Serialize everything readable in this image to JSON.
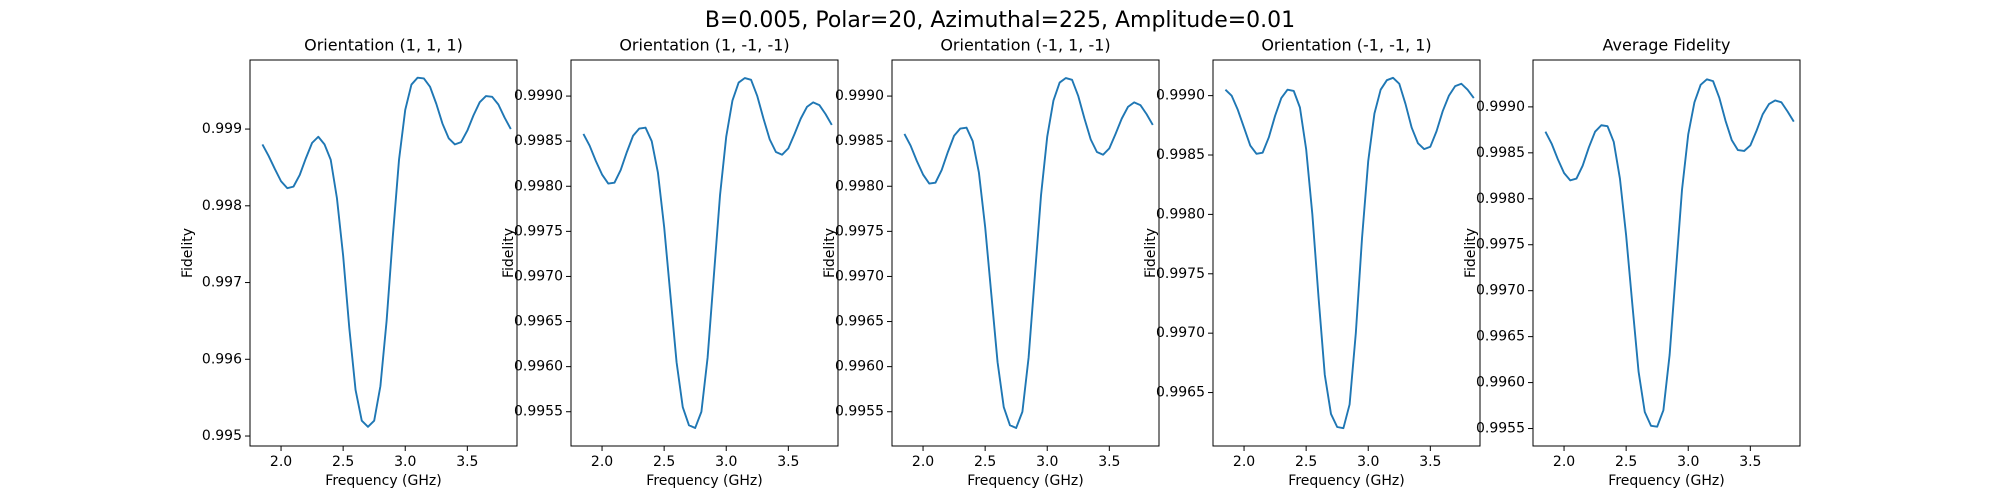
{
  "title": "B=0.005, Polar=20, Azimuthal=225, Amplitude=0.01",
  "chart_data": [
    {
      "type": "line",
      "title": "Orientation (1, 1, 1)",
      "xlabel": "Frequency (GHz)",
      "ylabel": "Fidelity",
      "color": "#1f77b4",
      "x": [
        1.85,
        1.9,
        1.95,
        2.0,
        2.05,
        2.1,
        2.15,
        2.2,
        2.25,
        2.3,
        2.35,
        2.4,
        2.45,
        2.5,
        2.55,
        2.6,
        2.65,
        2.7,
        2.75,
        2.8,
        2.85,
        2.9,
        2.95,
        3.0,
        3.05,
        3.1,
        3.15,
        3.2,
        3.25,
        3.3,
        3.35,
        3.4,
        3.45,
        3.5,
        3.55,
        3.6,
        3.65,
        3.7,
        3.75,
        3.8,
        3.85
      ],
      "values": [
        0.9988,
        0.99865,
        0.99848,
        0.99832,
        0.99823,
        0.99825,
        0.9984,
        0.99862,
        0.99882,
        0.9989,
        0.9988,
        0.9986,
        0.9981,
        0.99735,
        0.9964,
        0.9956,
        0.9952,
        0.99512,
        0.9952,
        0.99565,
        0.9965,
        0.9976,
        0.9986,
        0.99925,
        0.99958,
        0.99967,
        0.99966,
        0.99955,
        0.99933,
        0.99907,
        0.99888,
        0.9988,
        0.99883,
        0.99898,
        0.99918,
        0.99935,
        0.99943,
        0.99942,
        0.99932,
        0.99915,
        0.999
      ],
      "xlim": [
        1.75,
        3.9
      ],
      "ylim": [
        0.99487,
        0.9999
      ],
      "xticks": [
        {
          "value": 2,
          "label": "2.0"
        },
        2.5,
        {
          "value": 3,
          "label": "3.0"
        },
        3.5
      ],
      "yticks": [
        {
          "value": 0.995,
          "label": "0.995"
        },
        0.996,
        0.997,
        0.998,
        0.999
      ]
    },
    {
      "type": "line",
      "title": "Orientation (1, -1, -1)",
      "xlabel": "Frequency (GHz)",
      "ylabel": "Fidelity",
      "color": "#1f77b4",
      "x": [
        1.85,
        1.9,
        1.95,
        2.0,
        2.05,
        2.1,
        2.15,
        2.2,
        2.25,
        2.3,
        2.35,
        2.4,
        2.45,
        2.5,
        2.55,
        2.6,
        2.65,
        2.7,
        2.75,
        2.8,
        2.85,
        2.9,
        2.95,
        3.0,
        3.05,
        3.1,
        3.15,
        3.2,
        3.25,
        3.3,
        3.35,
        3.4,
        3.45,
        3.5,
        3.55,
        3.6,
        3.65,
        3.7,
        3.75,
        3.8,
        3.85
      ],
      "values": [
        0.99858,
        0.99845,
        0.99828,
        0.99813,
        0.99803,
        0.99804,
        0.99818,
        0.99838,
        0.99856,
        0.99864,
        0.99865,
        0.9985,
        0.99815,
        0.99755,
        0.9968,
        0.99605,
        0.99555,
        0.99535,
        0.99532,
        0.9955,
        0.9961,
        0.997,
        0.9979,
        0.99855,
        0.99895,
        0.99915,
        0.9992,
        0.99918,
        0.999,
        0.99875,
        0.99852,
        0.99838,
        0.99835,
        0.99842,
        0.99858,
        0.99875,
        0.99888,
        0.99893,
        0.9989,
        0.9988,
        0.99868
      ],
      "xlim": [
        1.75,
        3.9
      ],
      "ylim": [
        0.99512,
        0.9994
      ],
      "xticks": [
        {
          "value": 2,
          "label": "2.0"
        },
        2.5,
        {
          "value": 3,
          "label": "3.0"
        },
        3.5
      ],
      "yticks": [
        0.9955,
        {
          "value": 0.996,
          "label": "0.9960"
        },
        0.9965,
        {
          "value": 0.997,
          "label": "0.9970"
        },
        0.9975,
        {
          "value": 0.998,
          "label": "0.9980"
        },
        0.9985,
        {
          "value": 0.999,
          "label": "0.9990"
        }
      ]
    },
    {
      "type": "line",
      "title": "Orientation (-1, 1, -1)",
      "xlabel": "Frequency (GHz)",
      "ylabel": "Fidelity",
      "color": "#1f77b4",
      "x": [
        1.85,
        1.9,
        1.95,
        2.0,
        2.05,
        2.1,
        2.15,
        2.2,
        2.25,
        2.3,
        2.35,
        2.4,
        2.45,
        2.5,
        2.55,
        2.6,
        2.65,
        2.7,
        2.75,
        2.8,
        2.85,
        2.9,
        2.95,
        3.0,
        3.05,
        3.1,
        3.15,
        3.2,
        3.25,
        3.3,
        3.35,
        3.4,
        3.45,
        3.5,
        3.55,
        3.6,
        3.65,
        3.7,
        3.75,
        3.8,
        3.85
      ],
      "values": [
        0.99858,
        0.99845,
        0.99828,
        0.99813,
        0.99803,
        0.99804,
        0.99818,
        0.99838,
        0.99856,
        0.99864,
        0.99865,
        0.9985,
        0.99815,
        0.99755,
        0.9968,
        0.99605,
        0.99555,
        0.99535,
        0.99532,
        0.9955,
        0.9961,
        0.997,
        0.9979,
        0.99855,
        0.99895,
        0.99915,
        0.9992,
        0.99918,
        0.999,
        0.99875,
        0.99852,
        0.99838,
        0.99835,
        0.99842,
        0.99858,
        0.99875,
        0.99888,
        0.99893,
        0.9989,
        0.9988,
        0.99868
      ],
      "xlim": [
        1.75,
        3.9
      ],
      "ylim": [
        0.99512,
        0.9994
      ],
      "xticks": [
        {
          "value": 2,
          "label": "2.0"
        },
        2.5,
        {
          "value": 3,
          "label": "3.0"
        },
        3.5
      ],
      "yticks": [
        0.9955,
        {
          "value": 0.996,
          "label": "0.9960"
        },
        0.9965,
        {
          "value": 0.997,
          "label": "0.9970"
        },
        0.9975,
        {
          "value": 0.998,
          "label": "0.9980"
        },
        0.9985,
        {
          "value": 0.999,
          "label": "0.9990"
        }
      ]
    },
    {
      "type": "line",
      "title": "Orientation (-1, -1, 1)",
      "xlabel": "Frequency (GHz)",
      "ylabel": "Fidelity",
      "color": "#1f77b4",
      "x": [
        1.85,
        1.9,
        1.95,
        2.0,
        2.05,
        2.1,
        2.15,
        2.2,
        2.25,
        2.3,
        2.35,
        2.4,
        2.45,
        2.5,
        2.55,
        2.6,
        2.65,
        2.7,
        2.75,
        2.8,
        2.85,
        2.9,
        2.95,
        3.0,
        3.05,
        3.1,
        3.15,
        3.2,
        3.25,
        3.3,
        3.35,
        3.4,
        3.45,
        3.5,
        3.55,
        3.6,
        3.65,
        3.7,
        3.75,
        3.8,
        3.85
      ],
      "values": [
        0.99905,
        0.999,
        0.99888,
        0.99873,
        0.99858,
        0.99851,
        0.99852,
        0.99865,
        0.99883,
        0.99898,
        0.99905,
        0.99904,
        0.9989,
        0.99855,
        0.998,
        0.9973,
        0.99665,
        0.99632,
        0.99621,
        0.9962,
        0.9964,
        0.997,
        0.9978,
        0.99845,
        0.99885,
        0.99905,
        0.99913,
        0.99915,
        0.9991,
        0.99893,
        0.99873,
        0.9986,
        0.99855,
        0.99857,
        0.9987,
        0.99887,
        0.999,
        0.99908,
        0.9991,
        0.99905,
        0.99898
      ],
      "xlim": [
        1.75,
        3.9
      ],
      "ylim": [
        0.99605,
        0.9993
      ],
      "xticks": [
        {
          "value": 2,
          "label": "2.0"
        },
        2.5,
        {
          "value": 3,
          "label": "3.0"
        },
        3.5
      ],
      "yticks": [
        0.9965,
        {
          "value": 0.997,
          "label": "0.9970"
        },
        0.9975,
        {
          "value": 0.998,
          "label": "0.9980"
        },
        0.9985,
        {
          "value": 0.999,
          "label": "0.9990"
        }
      ]
    },
    {
      "type": "line",
      "title": "Average Fidelity",
      "xlabel": "Frequency (GHz)",
      "ylabel": "Fidelity",
      "color": "#1f77b4",
      "x": [
        1.85,
        1.9,
        1.95,
        2.0,
        2.05,
        2.1,
        2.15,
        2.2,
        2.25,
        2.3,
        2.35,
        2.4,
        2.45,
        2.5,
        2.55,
        2.6,
        2.65,
        2.7,
        2.75,
        2.8,
        2.85,
        2.9,
        2.95,
        3.0,
        3.05,
        3.1,
        3.15,
        3.2,
        3.25,
        3.3,
        3.35,
        3.4,
        3.45,
        3.5,
        3.55,
        3.6,
        3.65,
        3.7,
        3.75,
        3.8,
        3.85
      ],
      "values": [
        0.99873,
        0.9986,
        0.99843,
        0.99828,
        0.9982,
        0.99822,
        0.99836,
        0.99856,
        0.99873,
        0.9988,
        0.99879,
        0.99862,
        0.99822,
        0.9976,
        0.99685,
        0.99612,
        0.99568,
        0.99553,
        0.99552,
        0.9957,
        0.9963,
        0.9972,
        0.9981,
        0.9987,
        0.99905,
        0.99924,
        0.9993,
        0.99928,
        0.9991,
        0.99885,
        0.99864,
        0.99853,
        0.99852,
        0.99858,
        0.99874,
        0.99892,
        0.99903,
        0.99907,
        0.99905,
        0.99895,
        0.99884
      ],
      "xlim": [
        1.75,
        3.9
      ],
      "ylim": [
        0.99531,
        0.99951
      ],
      "xticks": [
        {
          "value": 2,
          "label": "2.0"
        },
        2.5,
        {
          "value": 3,
          "label": "3.0"
        },
        3.5
      ],
      "yticks": [
        0.9955,
        {
          "value": 0.996,
          "label": "0.9960"
        },
        0.9965,
        {
          "value": 0.997,
          "label": "0.9970"
        },
        0.9975,
        {
          "value": 0.998,
          "label": "0.9980"
        },
        0.9985,
        {
          "value": 0.999,
          "label": "0.9990"
        }
      ]
    }
  ]
}
